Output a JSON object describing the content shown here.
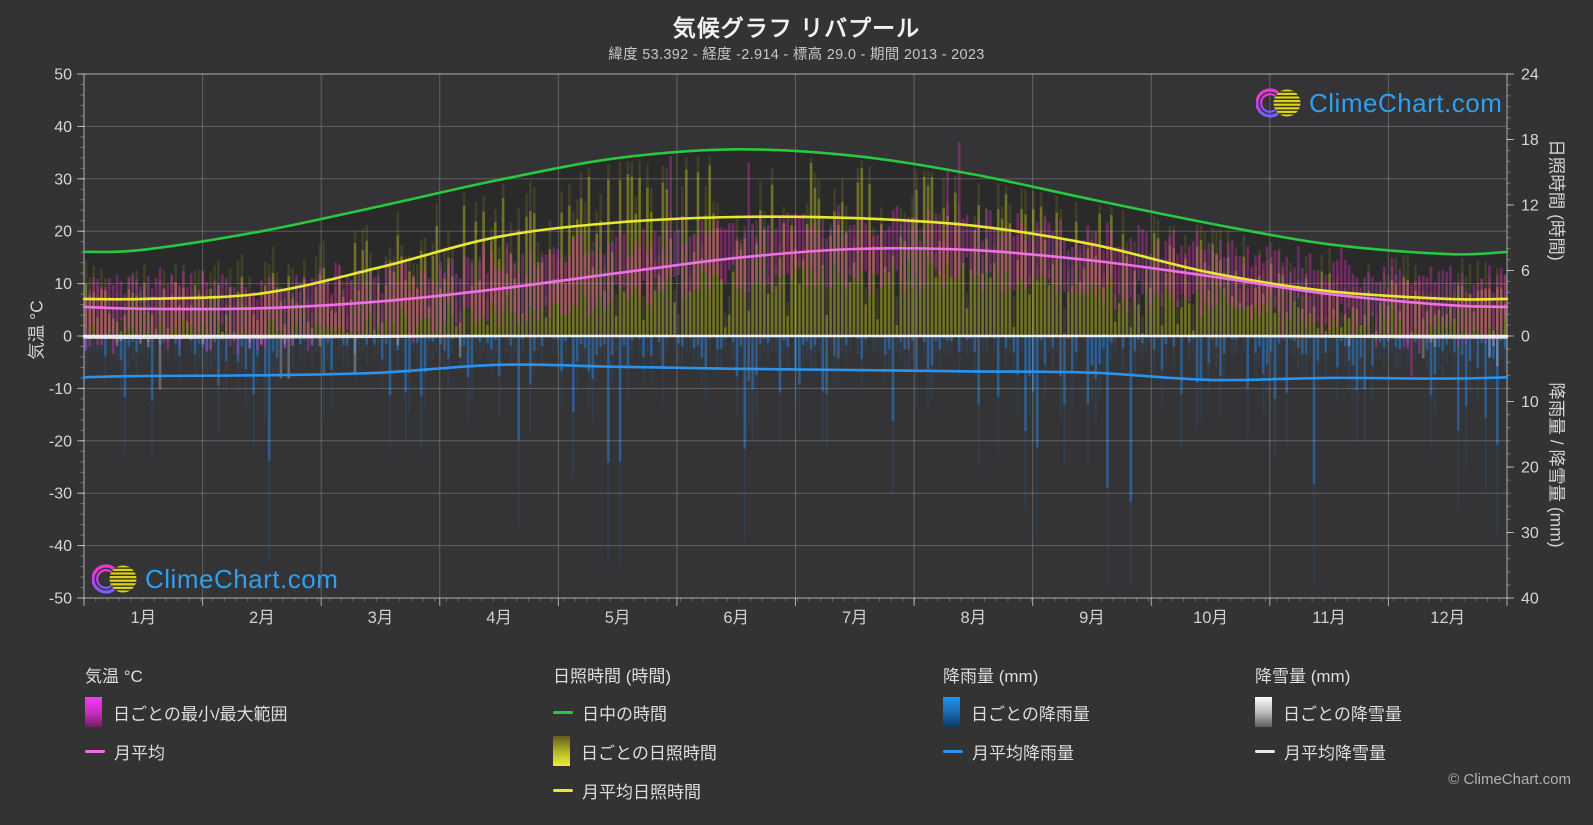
{
  "header": {
    "title": "気候グラフ リバプール",
    "subtitle": "緯度 53.392 - 経度 -2.914 - 標高 29.0 - 期間 2013 - 2023"
  },
  "logo": {
    "text": "ClimeChart.com"
  },
  "footer": {
    "copyright": "© ClimeChart.com"
  },
  "axes": {
    "temperature": {
      "title": "気温 °C",
      "ticks": [
        50,
        40,
        30,
        20,
        10,
        0,
        -10,
        -20,
        -30,
        -40,
        -50
      ]
    },
    "sunshine": {
      "title": "日照時間 (時間)",
      "ticks": [
        24,
        18,
        12,
        6,
        0
      ]
    },
    "precipitation": {
      "title": "降雨量 / 降雪量 (mm)",
      "ticks": [
        10,
        20,
        30,
        40
      ]
    }
  },
  "legend": {
    "groups": [
      {
        "title": "気温 °C",
        "items": [
          {
            "swatch": "gradient-magenta",
            "label": "日ごとの最小/最大範囲"
          },
          {
            "swatch": "line-magenta",
            "label": "月平均"
          }
        ]
      },
      {
        "title": "日照時間 (時間)",
        "items": [
          {
            "swatch": "line-green",
            "label": "日中の時間"
          },
          {
            "swatch": "gradient-yellow",
            "label": "日ごとの日照時間"
          },
          {
            "swatch": "line-yellow",
            "label": "月平均日照時間"
          }
        ]
      },
      {
        "title": "降雨量 (mm)",
        "items": [
          {
            "swatch": "gradient-blue",
            "label": "日ごとの降雨量"
          },
          {
            "swatch": "line-blue",
            "label": "月平均降雨量"
          }
        ]
      },
      {
        "title": "降雪量 (mm)",
        "items": [
          {
            "swatch": "gradient-white",
            "label": "日ごとの降雪量"
          },
          {
            "swatch": "line-white",
            "label": "月平均降雪量"
          }
        ]
      }
    ]
  },
  "chart_data": {
    "type": "bar",
    "title": "気候グラフ リバプール",
    "subtitle": "緯度 53.392 - 経度 -2.914 - 標高 29.0 - 期間 2013 - 2023",
    "months": [
      "1月",
      "2月",
      "3月",
      "4月",
      "5月",
      "6月",
      "7月",
      "8月",
      "9月",
      "10月",
      "11月",
      "12月"
    ],
    "axis_ranges": {
      "temperature_c": [
        -50,
        50
      ],
      "sunshine_hours": [
        0,
        24
      ],
      "precipitation_mm": [
        0,
        40
      ]
    },
    "series": {
      "day_length_hours": [
        7.9,
        9.6,
        11.9,
        14.3,
        16.3,
        17.1,
        16.5,
        14.8,
        12.5,
        10.3,
        8.4,
        7.5
      ],
      "sunshine_avg_hours": [
        3.4,
        3.9,
        6.3,
        9.1,
        10.4,
        10.9,
        10.8,
        10.1,
        8.4,
        5.8,
        4.1,
        3.4
      ],
      "temp_avg_c": [
        5.2,
        5.3,
        6.6,
        9.0,
        12.0,
        14.9,
        16.6,
        16.4,
        14.4,
        11.4,
        8.0,
        5.9
      ],
      "rain_avg_mm_per_day": [
        6.1,
        6.0,
        5.6,
        4.4,
        4.7,
        5.0,
        5.2,
        5.4,
        5.6,
        6.7,
        6.4,
        6.5
      ],
      "snow_avg_mm_per_day": [
        0.3,
        0.25,
        0.15,
        0.02,
        0,
        0,
        0,
        0,
        0,
        0.01,
        0.1,
        0.25
      ]
    },
    "colors": {
      "background": "#333333",
      "plot_background": "#343436",
      "daylight_fill": "#2a2a2b",
      "temp_range_bar": "#ff30d8",
      "temp_avg_line": "#f06ee6",
      "day_length_line": "#28c840",
      "sunshine_bar": "#c8c81e",
      "sunshine_avg_line": "#e8e832",
      "rain_bar": "#2688e8",
      "rain_avg_line": "#2a93ee",
      "snow_bar": "#d0d0d8",
      "snow_avg_line": "#e0e0e0",
      "zero_line": "#ededed",
      "logo_text": "#2f9ff0"
    }
  }
}
